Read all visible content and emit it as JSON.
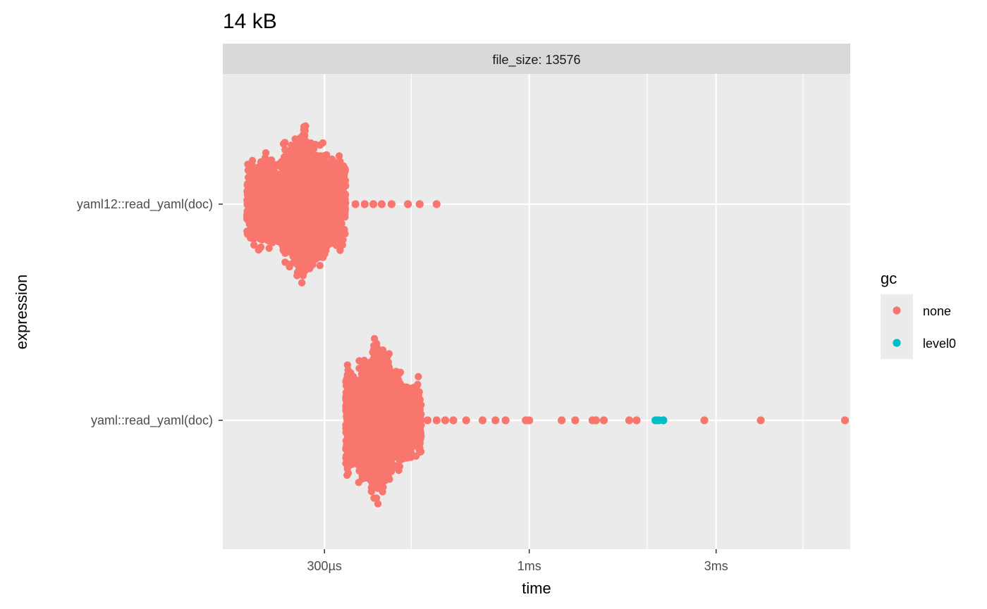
{
  "chart_data": {
    "type": "scatter",
    "title": "14 kB",
    "facet_label": "file_size: 13576",
    "xlabel": "time",
    "ylabel": "expression",
    "x_scale": "log10",
    "xlim_seconds": [
      0.000165,
      0.0066
    ],
    "x_ticks": [
      {
        "value": 0.0003,
        "label": "300µs"
      },
      {
        "value": 0.001,
        "label": "1ms"
      },
      {
        "value": 0.003,
        "label": "3ms"
      }
    ],
    "x_minor_breaks": [
      0.0005,
      0.002,
      0.005
    ],
    "categories": [
      "yaml12::read_yaml(doc)",
      "yaml::read_yaml(doc)"
    ],
    "legend": {
      "title": "gc",
      "placement": "right",
      "entries": [
        {
          "label": "none",
          "color": "#F8766D"
        },
        {
          "label": "level0",
          "color": "#00BFC4"
        }
      ]
    },
    "grid": true,
    "series": [
      {
        "category": "yaml12::read_yaml(doc)",
        "body_quantiles_seconds": [
          0.00019,
          0.000215,
          0.000235,
          0.00025,
          0.000262,
          0.00027,
          0.000285,
          0.000305,
          0.00034
        ],
        "tail_points": [
          {
            "time": 0.00036,
            "gc": "none"
          },
          {
            "time": 0.00038,
            "gc": "none"
          },
          {
            "time": 0.0004,
            "gc": "none"
          },
          {
            "time": 0.00042,
            "gc": "none"
          },
          {
            "time": 0.000445,
            "gc": "none"
          },
          {
            "time": 0.00049,
            "gc": "none"
          },
          {
            "time": 0.000525,
            "gc": "none"
          },
          {
            "time": 0.00058,
            "gc": "none"
          }
        ]
      },
      {
        "category": "yaml::read_yaml(doc)",
        "body_quantiles_seconds": [
          0.00034,
          0.000365,
          0.000385,
          0.0004,
          0.000412,
          0.000425,
          0.00044,
          0.00047,
          0.00053
        ],
        "tail_points": [
          {
            "time": 0.00055,
            "gc": "none"
          },
          {
            "time": 0.00058,
            "gc": "none"
          },
          {
            "time": 0.00061,
            "gc": "none"
          },
          {
            "time": 0.00064,
            "gc": "none"
          },
          {
            "time": 0.00069,
            "gc": "none"
          },
          {
            "time": 0.00076,
            "gc": "none"
          },
          {
            "time": 0.00082,
            "gc": "none"
          },
          {
            "time": 0.00087,
            "gc": "none"
          },
          {
            "time": 0.00098,
            "gc": "none"
          },
          {
            "time": 0.001,
            "gc": "none"
          },
          {
            "time": 0.00121,
            "gc": "none"
          },
          {
            "time": 0.00131,
            "gc": "none"
          },
          {
            "time": 0.00145,
            "gc": "none"
          },
          {
            "time": 0.00148,
            "gc": "none"
          },
          {
            "time": 0.00155,
            "gc": "none"
          },
          {
            "time": 0.0018,
            "gc": "none"
          },
          {
            "time": 0.00188,
            "gc": "none"
          },
          {
            "time": 0.0021,
            "gc": "level0"
          },
          {
            "time": 0.00214,
            "gc": "level0"
          },
          {
            "time": 0.0022,
            "gc": "level0"
          },
          {
            "time": 0.0028,
            "gc": "none"
          },
          {
            "time": 0.0039,
            "gc": "none"
          },
          {
            "time": 0.0064,
            "gc": "none"
          }
        ]
      }
    ]
  }
}
